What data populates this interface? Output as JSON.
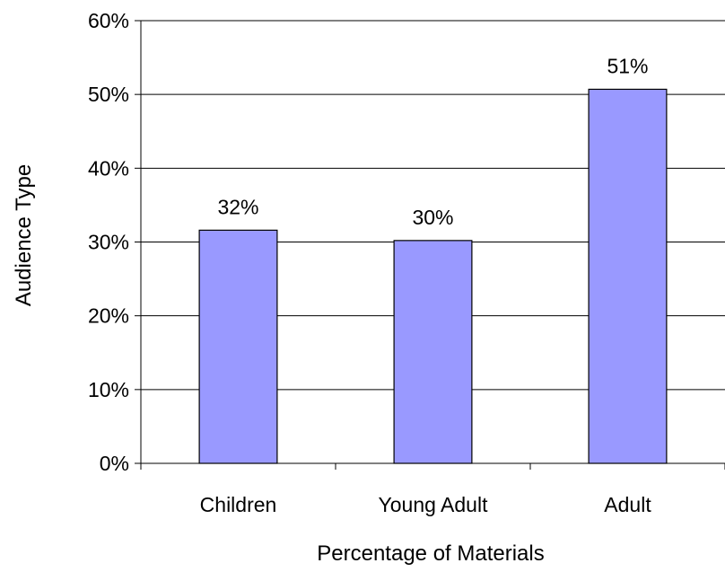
{
  "chart_data": {
    "type": "bar",
    "categories": [
      "Children",
      "Young Adult",
      "Adult"
    ],
    "values": [
      0.316,
      0.302,
      0.507
    ],
    "data_labels": [
      "32%",
      "30%",
      "51%"
    ],
    "xlabel": "Percentage of Materials",
    "ylabel": "Audience Type",
    "ylim": [
      0,
      0.6
    ],
    "yticks": [
      0,
      0.1,
      0.2,
      0.3,
      0.4,
      0.5,
      0.6
    ],
    "ytick_labels": [
      "0%",
      "10%",
      "20%",
      "30%",
      "40%",
      "50%",
      "60%"
    ],
    "grid": "horizontal",
    "legend": "none",
    "bar_color": "#9999FF",
    "bar_edge_color": "#000000"
  }
}
